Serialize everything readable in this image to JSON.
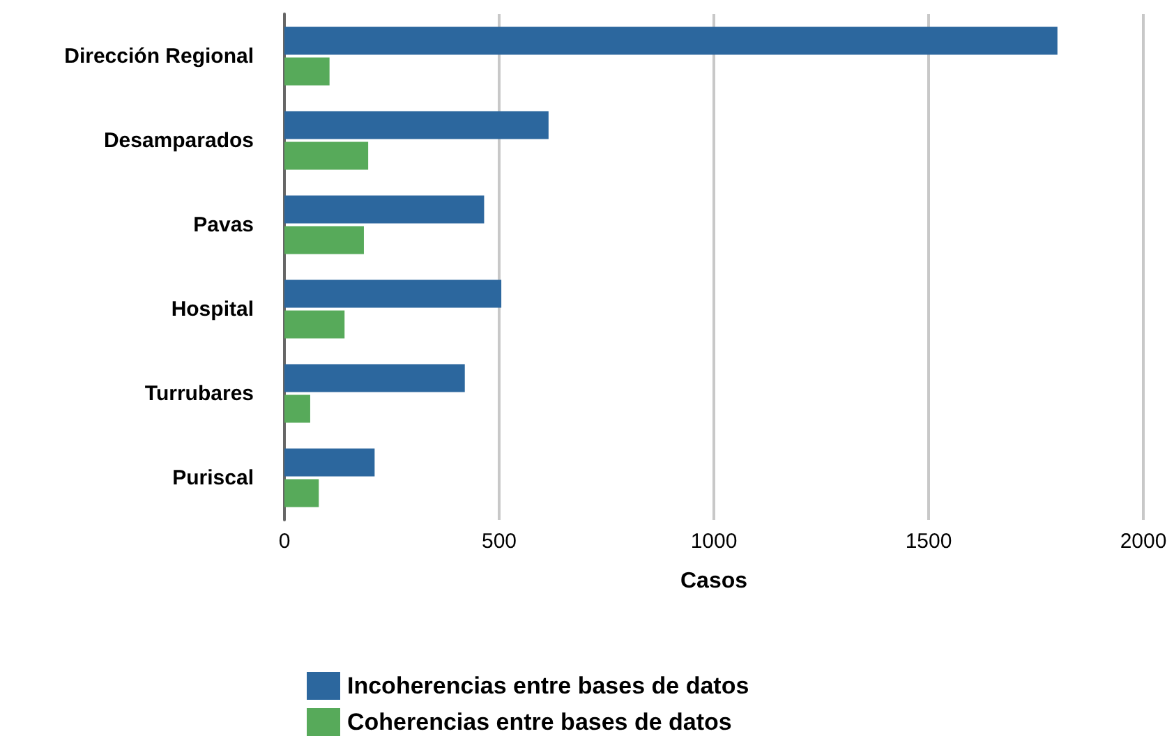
{
  "chart_data": {
    "type": "bar",
    "orientation": "horizontal",
    "xlabel": "Casos",
    "categories": [
      "Dirección Regional",
      "Desamparados",
      "Pavas",
      "Hospital",
      "Turrubares",
      "Puriscal"
    ],
    "series": [
      {
        "name": "Incoherencias entre bases de datos",
        "color": "#2c679e",
        "values": [
          1800,
          615,
          465,
          505,
          420,
          210
        ]
      },
      {
        "name": "Coherencias entre bases de datos",
        "color": "#57aa5a",
        "values": [
          105,
          195,
          185,
          140,
          60,
          80
        ]
      }
    ],
    "xlim": [
      0,
      2000
    ],
    "xticks": [
      0,
      500,
      1000,
      1500,
      2000
    ],
    "grid": "x",
    "legend": "bottom"
  }
}
